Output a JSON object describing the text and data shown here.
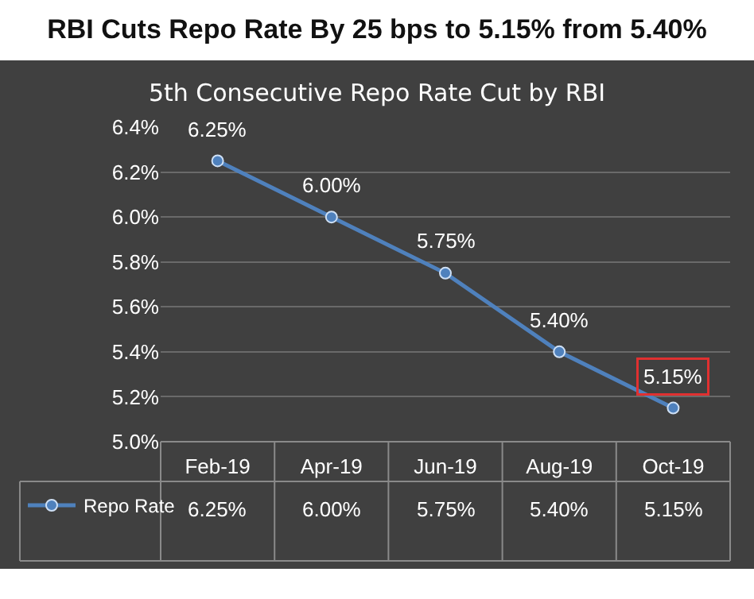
{
  "chart_data": {
    "type": "line",
    "title": "RBI Cuts Repo Rate By 25 bps to 5.15% from 5.40%",
    "subtitle": "5th Consecutive Repo Rate Cut by RBI",
    "categories": [
      "Feb-19",
      "Apr-19",
      "Jun-19",
      "Aug-19",
      "Oct-19"
    ],
    "series": [
      {
        "name": "Repo Rate",
        "color": "#4f81bd",
        "values": [
          6.25,
          6.0,
          5.75,
          5.4,
          5.15
        ],
        "value_labels": [
          "6.25%",
          "6.00%",
          "5.75%",
          "5.40%",
          "5.15%"
        ]
      }
    ],
    "ylim": [
      5.0,
      6.4
    ],
    "yticks": [
      {
        "value": 5.0,
        "label": "5.0%"
      },
      {
        "value": 5.2,
        "label": "5.2%"
      },
      {
        "value": 5.4,
        "label": "5.4%"
      },
      {
        "value": 5.6,
        "label": "5.6%"
      },
      {
        "value": 5.8,
        "label": "5.8%"
      },
      {
        "value": 6.0,
        "label": "6.0%"
      },
      {
        "value": 6.2,
        "label": "6.2%"
      },
      {
        "value": 6.4,
        "label": "6.4%"
      }
    ],
    "grid": "y",
    "legend": "bottom left",
    "marker": "circle",
    "line_style": "solid"
  }
}
